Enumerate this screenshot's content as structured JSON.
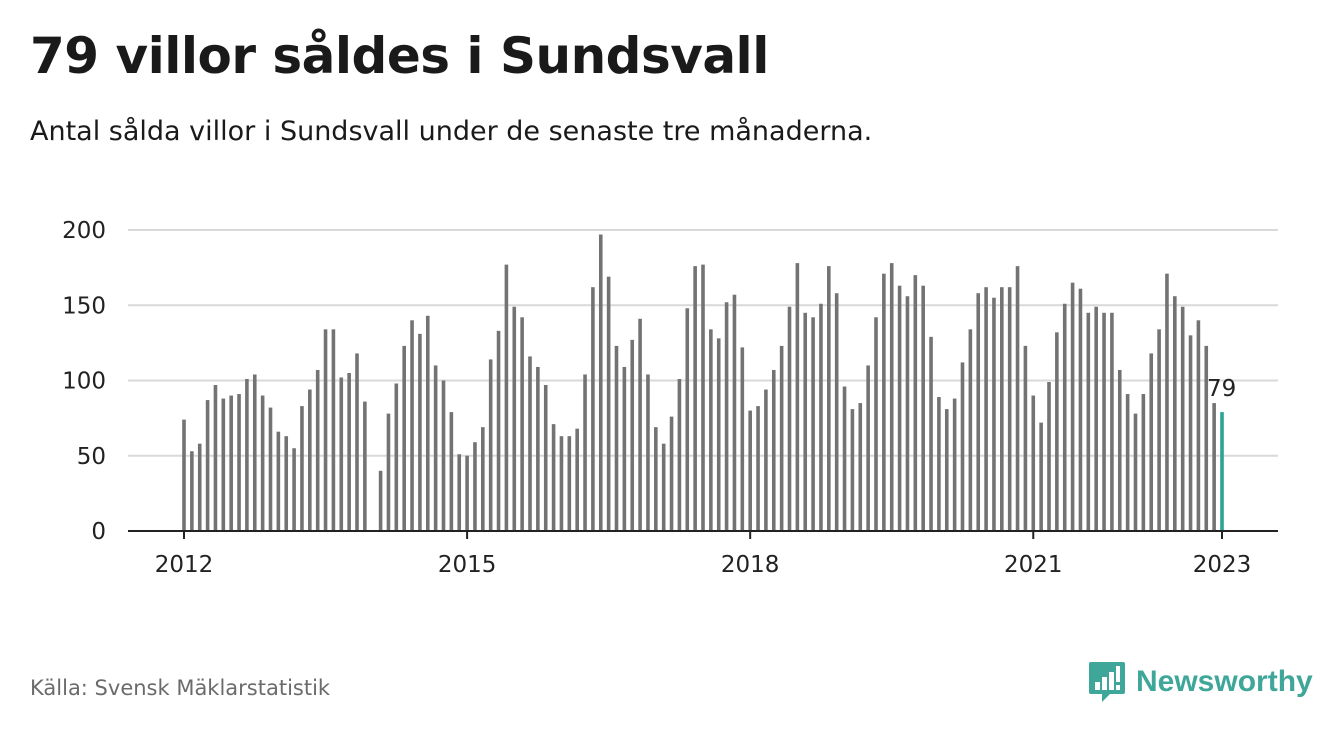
{
  "header": {
    "title": "79 villor såldes i Sundsvall",
    "subtitle": "Antal sålda villor i Sundsvall under de senaste tre månaderna."
  },
  "footer": {
    "source": "Källa: Svensk Mäklarstatistik",
    "brand": "Newsworthy"
  },
  "colors": {
    "bar": "#737373",
    "highlight": "#2aa596",
    "grid": "#d9d9d9",
    "axis": "#222222",
    "brand": "#3fa69a"
  },
  "icons": {
    "logo": "newsworthy-bar-chart-icon"
  },
  "chart_data": {
    "type": "bar",
    "ylim": [
      0,
      200
    ],
    "yticks": [
      0,
      50,
      100,
      150,
      200
    ],
    "xticks": [
      "2012",
      "2015",
      "2018",
      "2021",
      "2023"
    ],
    "highlight_label": "79",
    "grid": true,
    "values": [
      74,
      53,
      58,
      87,
      97,
      88,
      90,
      91,
      101,
      104,
      90,
      82,
      66,
      63,
      55,
      83,
      94,
      107,
      134,
      134,
      102,
      105,
      118,
      86,
      null,
      40,
      78,
      98,
      123,
      140,
      131,
      143,
      110,
      100,
      79,
      51,
      50,
      59,
      69,
      114,
      133,
      177,
      149,
      142,
      116,
      109,
      97,
      71,
      63,
      63,
      68,
      104,
      162,
      197,
      169,
      123,
      109,
      127,
      141,
      104,
      69,
      58,
      76,
      101,
      148,
      176,
      177,
      134,
      128,
      152,
      157,
      122,
      80,
      83,
      94,
      107,
      123,
      149,
      178,
      145,
      142,
      151,
      176,
      158,
      96,
      81,
      85,
      110,
      142,
      171,
      178,
      163,
      156,
      170,
      163,
      129,
      89,
      81,
      88,
      112,
      134,
      158,
      162,
      155,
      162,
      162,
      176,
      123,
      90,
      72,
      99,
      132,
      151,
      165,
      161,
      145,
      149,
      145,
      145,
      107,
      91,
      78,
      91,
      118,
      134,
      171,
      156,
      149,
      130,
      140,
      123,
      85,
      79
    ]
  }
}
